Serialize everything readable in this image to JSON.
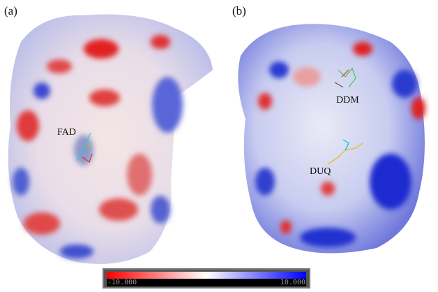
{
  "panels": [
    {
      "label": "(a)",
      "ligands": [
        "FAD"
      ]
    },
    {
      "label": "(b)",
      "ligands": [
        "DDM",
        "DUQ"
      ]
    }
  ],
  "colorbar": {
    "min_label": "-10.000",
    "max_label": "10.000",
    "colors": {
      "negative": "#ff0000",
      "neutral": "#ffffff",
      "positive": "#0000ff"
    }
  }
}
